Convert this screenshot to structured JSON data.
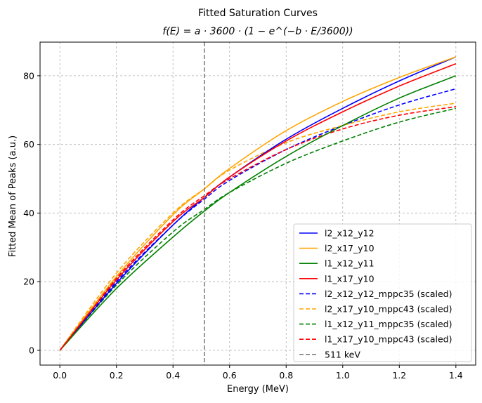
{
  "chart_data": {
    "type": "line",
    "title": "Fitted Saturation Curves",
    "subtitle": "f(E) = a · 3600 · (1 − e^(−b · E/3600))",
    "xlabel": "Energy (MeV)",
    "ylabel": "Fitted Mean of Peaks (a.u.)",
    "xlim": [
      -0.07,
      1.47
    ],
    "ylim": [
      -4.3,
      89.8
    ],
    "xticks": [
      "0.0",
      "0.2",
      "0.4",
      "0.6",
      "0.8",
      "1.0",
      "1.2",
      "1.4"
    ],
    "yticks": [
      "0",
      "20",
      "40",
      "60",
      "80"
    ],
    "grid": true,
    "legend_position": "lower-right",
    "series": [
      {
        "name": "l2_x12_y12",
        "color": "#0000ff",
        "dash": "solid",
        "x": [
          0,
          0.2,
          0.4,
          0.51,
          0.6,
          0.8,
          1.0,
          1.2,
          1.4
        ],
        "y": [
          0,
          19.5,
          36.5,
          44.5,
          50.5,
          61.5,
          70.5,
          78.5,
          85.5
        ]
      },
      {
        "name": "l2_x17_y10",
        "color": "#ffa500",
        "dash": "solid",
        "x": [
          0,
          0.2,
          0.4,
          0.51,
          0.6,
          0.8,
          1.0,
          1.2,
          1.4
        ],
        "y": [
          0,
          21.5,
          39.5,
          47,
          53,
          64,
          72.5,
          79.5,
          85.5
        ]
      },
      {
        "name": "l1_x12_y11",
        "color": "#008000",
        "dash": "solid",
        "x": [
          0,
          0.2,
          0.4,
          0.51,
          0.6,
          0.8,
          1.0,
          1.2,
          1.4
        ],
        "y": [
          0,
          18,
          33,
          40.5,
          46,
          56.5,
          65.5,
          73.5,
          80
        ]
      },
      {
        "name": "l1_x17_y10",
        "color": "#ff0000",
        "dash": "solid",
        "x": [
          0,
          0.2,
          0.4,
          0.51,
          0.6,
          0.8,
          1.0,
          1.2,
          1.4
        ],
        "y": [
          0,
          20.5,
          37.5,
          44.5,
          50.5,
          61,
          69.5,
          77,
          83.5
        ]
      },
      {
        "name": "l2_x12_y12_mppc35 (scaled)",
        "color": "#0000ff",
        "dash": "dashed",
        "x": [
          0,
          0.2,
          0.4,
          0.51,
          0.6,
          0.8,
          1.0,
          1.2,
          1.4
        ],
        "y": [
          0,
          20,
          36.5,
          44,
          49.5,
          58.5,
          65.5,
          71.5,
          76.2
        ]
      },
      {
        "name": "l2_x17_y10_mppc43 (scaled)",
        "color": "#ffa500",
        "dash": "dashed",
        "x": [
          0,
          0.2,
          0.4,
          0.51,
          0.6,
          0.8,
          1.0,
          1.2,
          1.4
        ],
        "y": [
          0,
          22.5,
          40,
          47,
          52.5,
          60.5,
          65.5,
          69.5,
          72
        ]
      },
      {
        "name": "l1_x12_y11_mppc35 (scaled)",
        "color": "#008000",
        "dash": "dashed",
        "x": [
          0,
          0.2,
          0.4,
          0.51,
          0.6,
          0.8,
          1.0,
          1.2,
          1.4
        ],
        "y": [
          0,
          19,
          34.5,
          41,
          46,
          54.5,
          61,
          66.5,
          70.5
        ]
      },
      {
        "name": "l1_x17_y10_mppc43 (scaled)",
        "color": "#ff0000",
        "dash": "dashed",
        "x": [
          0,
          0.2,
          0.4,
          0.51,
          0.6,
          0.8,
          1.0,
          1.2,
          1.4
        ],
        "y": [
          0,
          21,
          38,
          45,
          50,
          58.5,
          64.5,
          68.5,
          71
        ]
      }
    ],
    "vline": {
      "name": "511 keV",
      "x": 0.511,
      "color": "#808080",
      "dash": "dashed"
    }
  }
}
